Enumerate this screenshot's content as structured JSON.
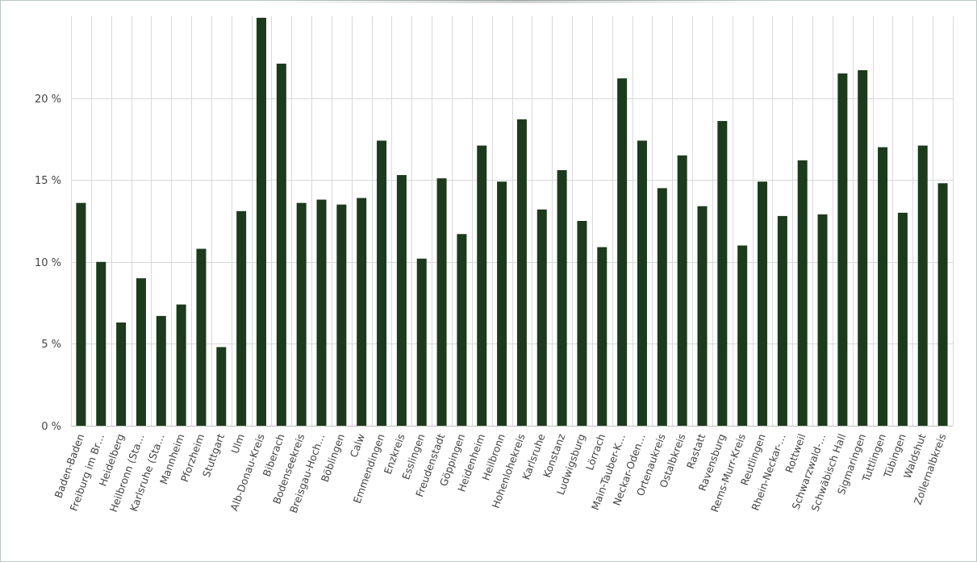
{
  "chart_data": {
    "type": "bar",
    "title": "",
    "xlabel": "",
    "ylabel": "",
    "y_unit": "%",
    "ylim": [
      0,
      25
    ],
    "y_ticks": [
      0,
      5,
      10,
      15,
      20
    ],
    "y_tick_labels": [
      "0 %",
      "5 %",
      "10 %",
      "15 %",
      "20 %"
    ],
    "grid": true,
    "bar_color": "#1c3a1c",
    "categories": [
      "Baden-Baden",
      "Freiburg im Br…",
      "Heidelberg",
      "Heilbronn (Sta…",
      "Karlsruhe (Sta…",
      "Mannheim",
      "Pforzheim",
      "Stuttgart",
      "Ulm",
      "Alb-Donau-Kreis",
      "Biberach",
      "Bodenseekreis",
      "Breisgau-Hoch…",
      "Böblingen",
      "Calw",
      "Emmendingen",
      "Enzkreis",
      "Esslingen",
      "Freudenstadt",
      "Göppingen",
      "Heidenheim",
      "Heilbronn",
      "Hohenlohekreis",
      "Karlsruhe",
      "Konstanz",
      "Ludwigsburg",
      "Lörrach",
      "Main-Tauber-K…",
      "Neckar-Oden…",
      "Ortenaukreis",
      "Ostalbkreis",
      "Rastatt",
      "Ravensburg",
      "Rems-Murr-Kreis",
      "Reutlingen",
      "Rhein-Neckar-…",
      "Rottweil",
      "Schwarzwald-…",
      "Schwäbisch Hall",
      "Sigmaringen",
      "Tuttlingen",
      "Tübingen",
      "Waldshut",
      "Zollernalbkreis"
    ],
    "values": [
      13.6,
      10.0,
      6.3,
      9.0,
      6.7,
      7.4,
      10.8,
      4.8,
      13.1,
      24.9,
      22.1,
      13.6,
      13.8,
      13.5,
      13.9,
      17.4,
      15.3,
      10.2,
      15.1,
      11.7,
      17.1,
      14.9,
      18.7,
      13.2,
      15.6,
      12.5,
      10.9,
      21.2,
      17.4,
      14.5,
      16.5,
      13.4,
      18.6,
      11.0,
      14.9,
      12.8,
      16.2,
      12.9,
      21.5,
      21.7,
      17.0,
      13.0,
      17.1,
      14.8
    ]
  }
}
